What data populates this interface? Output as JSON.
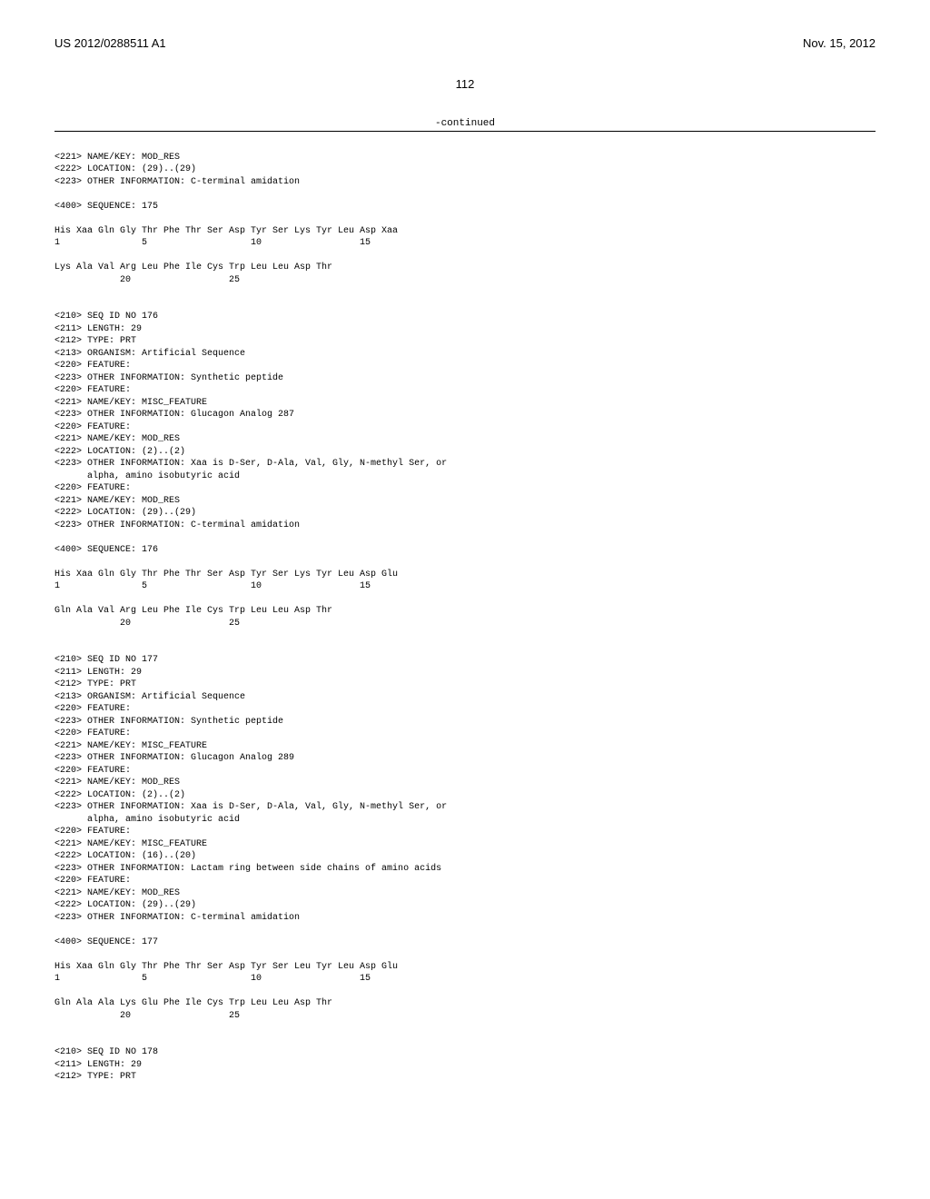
{
  "header": {
    "pub_number": "US 2012/0288511 A1",
    "pub_date": "Nov. 15, 2012"
  },
  "page_number": "112",
  "continued_label": "-continued",
  "seq175": {
    "line1": "<221> NAME/KEY: MOD_RES",
    "line2": "<222> LOCATION: (29)..(29)",
    "line3": "<223> OTHER INFORMATION: C-terminal amidation",
    "line4": "<400> SEQUENCE: 175",
    "aa1": "His Xaa Gln Gly Thr Phe Thr Ser Asp Tyr Ser Lys Tyr Leu Asp Xaa",
    "num1": "1               5                   10                  15",
    "aa2": "Lys Ala Val Arg Leu Phe Ile Cys Trp Leu Leu Asp Thr",
    "num2": "            20                  25"
  },
  "seq176": {
    "h1": "<210> SEQ ID NO 176",
    "h2": "<211> LENGTH: 29",
    "h3": "<212> TYPE: PRT",
    "h4": "<213> ORGANISM: Artificial Sequence",
    "h5": "<220> FEATURE:",
    "h6": "<223> OTHER INFORMATION: Synthetic peptide",
    "h7": "<220> FEATURE:",
    "h8": "<221> NAME/KEY: MISC_FEATURE",
    "h9": "<223> OTHER INFORMATION: Glucagon Analog 287",
    "h10": "<220> FEATURE:",
    "h11": "<221> NAME/KEY: MOD_RES",
    "h12": "<222> LOCATION: (2)..(2)",
    "h13": "<223> OTHER INFORMATION: Xaa is D-Ser, D-Ala, Val, Gly, N-methyl Ser, or",
    "h13b": "      alpha, amino isobutyric acid",
    "h14": "<220> FEATURE:",
    "h15": "<221> NAME/KEY: MOD_RES",
    "h16": "<222> LOCATION: (29)..(29)",
    "h17": "<223> OTHER INFORMATION: C-terminal amidation",
    "h18": "<400> SEQUENCE: 176",
    "aa1": "His Xaa Gln Gly Thr Phe Thr Ser Asp Tyr Ser Lys Tyr Leu Asp Glu",
    "num1": "1               5                   10                  15",
    "aa2": "Gln Ala Val Arg Leu Phe Ile Cys Trp Leu Leu Asp Thr",
    "num2": "            20                  25"
  },
  "seq177": {
    "h1": "<210> SEQ ID NO 177",
    "h2": "<211> LENGTH: 29",
    "h3": "<212> TYPE: PRT",
    "h4": "<213> ORGANISM: Artificial Sequence",
    "h5": "<220> FEATURE:",
    "h6": "<223> OTHER INFORMATION: Synthetic peptide",
    "h7": "<220> FEATURE:",
    "h8": "<221> NAME/KEY: MISC_FEATURE",
    "h9": "<223> OTHER INFORMATION: Glucagon Analog 289",
    "h10": "<220> FEATURE:",
    "h11": "<221> NAME/KEY: MOD_RES",
    "h12": "<222> LOCATION: (2)..(2)",
    "h13": "<223> OTHER INFORMATION: Xaa is D-Ser, D-Ala, Val, Gly, N-methyl Ser, or",
    "h13b": "      alpha, amino isobutyric acid",
    "h14": "<220> FEATURE:",
    "h15": "<221> NAME/KEY: MISC_FEATURE",
    "h16": "<222> LOCATION: (16)..(20)",
    "h17": "<223> OTHER INFORMATION: Lactam ring between side chains of amino acids",
    "h18": "<220> FEATURE:",
    "h19": "<221> NAME/KEY: MOD_RES",
    "h20": "<222> LOCATION: (29)..(29)",
    "h21": "<223> OTHER INFORMATION: C-terminal amidation",
    "h22": "<400> SEQUENCE: 177",
    "aa1": "His Xaa Gln Gly Thr Phe Thr Ser Asp Tyr Ser Leu Tyr Leu Asp Glu",
    "num1": "1               5                   10                  15",
    "aa2": "Gln Ala Ala Lys Glu Phe Ile Cys Trp Leu Leu Asp Thr",
    "num2": "            20                  25"
  },
  "seq178": {
    "h1": "<210> SEQ ID NO 178",
    "h2": "<211> LENGTH: 29",
    "h3": "<212> TYPE: PRT"
  }
}
